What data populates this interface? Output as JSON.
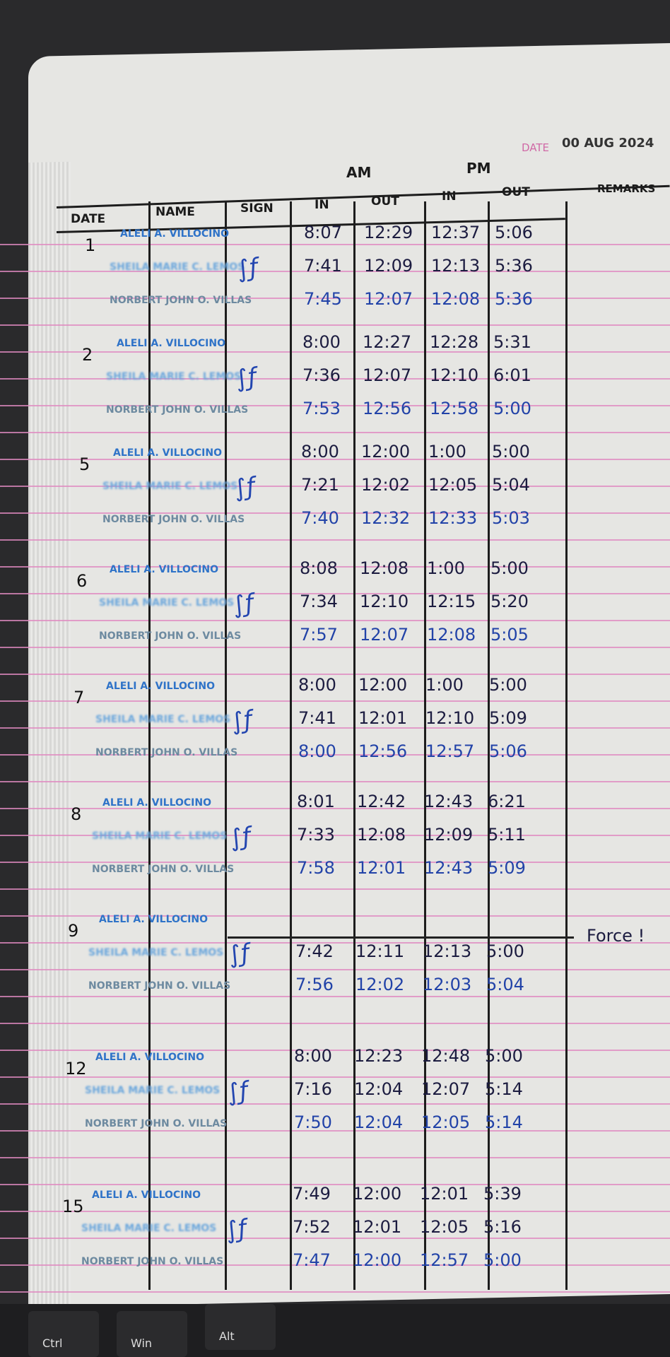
{
  "stamp": {
    "label": "DATE",
    "value": "00 AUG 2024"
  },
  "headers": {
    "date": "DATE",
    "name": "NAME",
    "sign": "SIGN",
    "am": "AM",
    "pm": "PM",
    "am_in": "IN",
    "am_out": "OUT",
    "pm_in": "IN",
    "pm_out": "OUT",
    "remarks": "REMARKS"
  },
  "names": [
    "ALELI A. VILLOCINO",
    "SHEILA MARIE C. LEMOS",
    "NORBERT JOHN O. VILLAS"
  ],
  "entries": [
    {
      "day": "1",
      "rows": [
        [
          "8:07",
          "12:29",
          "12:37",
          "5:06"
        ],
        [
          "7:41",
          "12:09",
          "12:13",
          "5:36"
        ],
        [
          "7:45",
          "12:07",
          "12:08",
          "5:36"
        ]
      ]
    },
    {
      "day": "2",
      "rows": [
        [
          "8:00",
          "12:27",
          "12:28",
          "5:31"
        ],
        [
          "7:36",
          "12:07",
          "12:10",
          "6:01"
        ],
        [
          "7:53",
          "12:56",
          "12:58",
          "5:00"
        ]
      ]
    },
    {
      "day": "5",
      "rows": [
        [
          "8:00",
          "12:00",
          "1:00",
          "5:00"
        ],
        [
          "7:21",
          "12:02",
          "12:05",
          "5:04"
        ],
        [
          "7:40",
          "12:32",
          "12:33",
          "5:03"
        ]
      ]
    },
    {
      "day": "6",
      "rows": [
        [
          "8:08",
          "12:08",
          "1:00",
          "5:00"
        ],
        [
          "7:34",
          "12:10",
          "12:15",
          "5:20"
        ],
        [
          "7:57",
          "12:07",
          "12:08",
          "5:05"
        ]
      ]
    },
    {
      "day": "7",
      "rows": [
        [
          "8:00",
          "12:00",
          "1:00",
          "5:00"
        ],
        [
          "7:41",
          "12:01",
          "12:10",
          "5:09"
        ],
        [
          "8:00",
          "12:56",
          "12:57",
          "5:06"
        ]
      ]
    },
    {
      "day": "8",
      "rows": [
        [
          "8:01",
          "12:42",
          "12:43",
          "6:21"
        ],
        [
          "7:33",
          "12:08",
          "12:09",
          "5:11"
        ],
        [
          "7:58",
          "12:01",
          "12:43",
          "5:09"
        ]
      ]
    },
    {
      "day": "9",
      "remark": "Force !",
      "rows": [
        [
          "",
          "",
          "",
          ""
        ],
        [
          "7:42",
          "12:11",
          "12:13",
          "5:00"
        ],
        [
          "7:56",
          "12:02",
          "12:03",
          "5:04"
        ]
      ]
    },
    {
      "day": "12",
      "rows": [
        [
          "8:00",
          "12:23",
          "12:48",
          "5:00"
        ],
        [
          "7:16",
          "12:04",
          "12:07",
          "5:14"
        ],
        [
          "7:50",
          "12:04",
          "12:05",
          "5:14"
        ]
      ]
    },
    {
      "day": "15",
      "rows": [
        [
          "7:49",
          "12:00",
          "12:01",
          "5:39"
        ],
        [
          "7:52",
          "12:01",
          "12:05",
          "5:16"
        ],
        [
          "7:47",
          "12:00",
          "12:57",
          "5:00"
        ]
      ]
    }
  ],
  "keyboard": {
    "keys": [
      "Ctrl",
      "Win",
      "Alt"
    ]
  },
  "colors": {
    "paper": "#e6e6e3",
    "rule": "#e089c0",
    "stamp_blue": "#2f73c8",
    "ink_blue": "#2243a8"
  }
}
